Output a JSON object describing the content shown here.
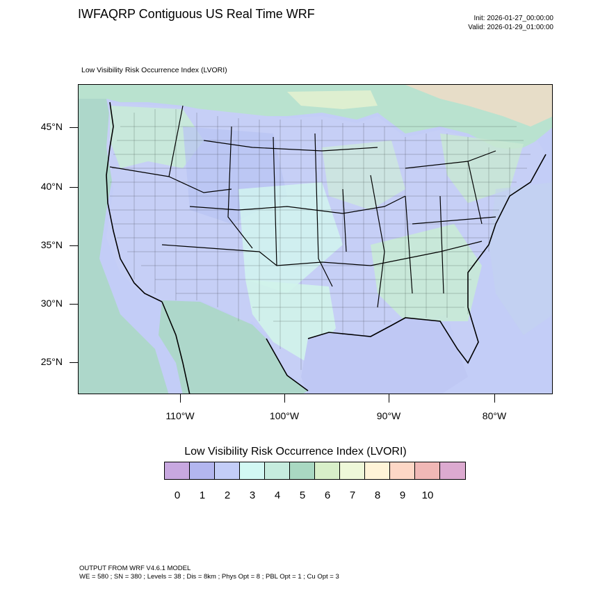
{
  "header": {
    "title": "IWFAQRP Contiguous US Real Time WRF",
    "init": "Init: 2026-01-27_00:00:00",
    "valid": "Valid: 2026-01-29_01:00:00"
  },
  "map": {
    "subtitle": "Low Visibility Risk Occurrence Index   (LVORI)",
    "lat_labels": [
      "45°N",
      "40°N",
      "35°N",
      "30°N",
      "25°N"
    ],
    "lon_labels": [
      "110°W",
      "100°W",
      "90°W",
      "80°W"
    ]
  },
  "legend": {
    "title": "Low Visibility Risk Occurrence Index  (LVORI)",
    "labels": [
      "0",
      "1",
      "2",
      "3",
      "4",
      "5",
      "6",
      "7",
      "8",
      "9",
      "10"
    ],
    "colors": [
      "#c8a8e0",
      "#b3b6ef",
      "#c3cdf7",
      "#d2f8f3",
      "#c6ecde",
      "#a9d8c2",
      "#d8efc9",
      "#eef8d9",
      "#fff4d8",
      "#fdd7c6",
      "#f0b8b6",
      "#dcaad0"
    ]
  },
  "footer": {
    "line1": "OUTPUT FROM WRF V4.6.1 MODEL",
    "line2": "WE = 580 ; SN = 380 ; Levels = 38 ; Dis = 8km ; Phys Opt = 8 ; PBL Opt = 1 ; Cu Opt = 3"
  }
}
